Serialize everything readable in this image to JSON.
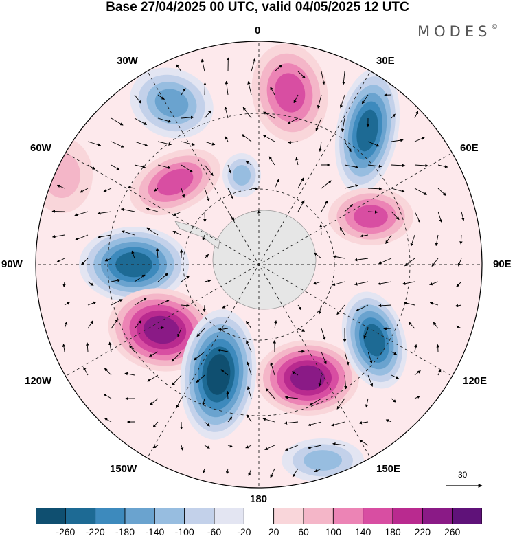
{
  "title": "Base 27/04/2025 00 UTC, valid 04/05/2025 12 UTC",
  "brand": "MODES",
  "brand_mark": "©",
  "longitude_labels": {
    "n0": "0",
    "n30e": "30E",
    "n60e": "60E",
    "n90e": "90E",
    "n120e": "120E",
    "n150e": "150E",
    "n180": "180",
    "n150w": "150W",
    "n120w": "120W",
    "n90w": "90W",
    "n60w": "60W",
    "n30w": "30W"
  },
  "vector_scale": {
    "label": "30"
  },
  "colorbar": {
    "ticks": [
      "-260",
      "-220",
      "-180",
      "-140",
      "-100",
      "-60",
      "-20",
      "20",
      "60",
      "100",
      "140",
      "180",
      "220",
      "260"
    ],
    "colors": [
      "#0f4f70",
      "#1d6a94",
      "#3d8abd",
      "#6aa3cf",
      "#97bde0",
      "#c3d1ea",
      "#e3e5f2",
      "#ffffff",
      "#f9d6da",
      "#f4b6c8",
      "#ec84b5",
      "#d84ea2",
      "#b92a8f",
      "#8a1a86",
      "#5f1279"
    ]
  },
  "anomalies": [
    {
      "kind": "positive",
      "level": 3
    },
    {
      "kind": "negative",
      "level": 3
    },
    {
      "kind": "negative",
      "level": 5
    },
    {
      "kind": "positive",
      "level": 3
    },
    {
      "kind": "negative",
      "level": 2
    },
    {
      "kind": "positive",
      "level": 3
    },
    {
      "kind": "negative",
      "level": 5
    },
    {
      "kind": "positive",
      "level": 5
    },
    {
      "kind": "negative",
      "level": 6
    },
    {
      "kind": "positive",
      "level": 5
    },
    {
      "kind": "negative",
      "level": 5
    },
    {
      "kind": "negative",
      "level": 2
    },
    {
      "kind": "positive",
      "level": 1
    }
  ]
}
